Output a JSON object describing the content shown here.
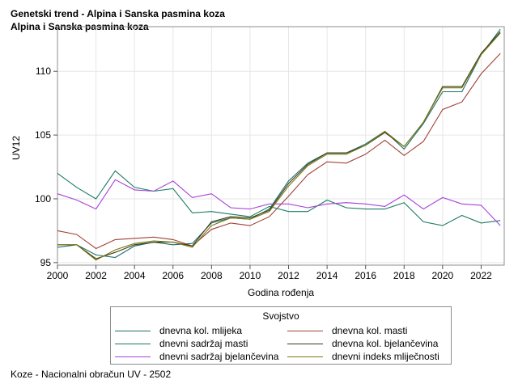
{
  "header": {
    "title": "Genetski trend - Alpina i Sanska pasmina koza",
    "subtitle": "Alpina i Sanska pasmina koza"
  },
  "footnote": "Koze - Nacionalni obračun UV - 2502",
  "chart_data": {
    "type": "line",
    "xlabel": "Godina rođenja",
    "ylabel": "UV12",
    "xlim": [
      2000,
      2023.2
    ],
    "ylim": [
      94.8,
      113.5
    ],
    "xticks": [
      "2000",
      "2002",
      "2004",
      "2006",
      "2008",
      "2010",
      "2012",
      "2014",
      "2016",
      "2018",
      "2020",
      "2022"
    ],
    "yticks": [
      "95",
      "100",
      "105",
      "110"
    ],
    "grid": true,
    "legend_title": "Svojstvo",
    "legend_position": "bottom",
    "x": [
      2000,
      2001,
      2002,
      2003,
      2004,
      2005,
      2006,
      2007,
      2008,
      2009,
      2010,
      2011,
      2012,
      2013,
      2014,
      2015,
      2016,
      2017,
      2018,
      2019,
      2020,
      2021,
      2022,
      2023
    ],
    "series": [
      {
        "name": "dnevna kol. mlijeka",
        "color": "#1f6e6e",
        "values": [
          96.2,
          96.4,
          95.6,
          95.4,
          96.3,
          96.6,
          96.4,
          96.5,
          98.1,
          98.5,
          98.4,
          99.2,
          101.4,
          102.8,
          103.6,
          103.6,
          104.3,
          105.3,
          103.9,
          105.9,
          108.4,
          108.4,
          111.3,
          113.3
        ]
      },
      {
        "name": "dnevna kol. masti",
        "color": "#a0413a",
        "values": [
          97.5,
          97.2,
          96.1,
          96.8,
          96.9,
          97.0,
          96.8,
          96.3,
          97.6,
          98.1,
          97.9,
          98.6,
          100.2,
          101.9,
          102.9,
          102.8,
          103.5,
          104.6,
          103.4,
          104.5,
          107.0,
          107.6,
          109.8,
          111.4
        ]
      },
      {
        "name": "dnevni sadržaj masti",
        "color": "#1a7a64",
        "values": [
          102.0,
          100.9,
          100.0,
          102.2,
          100.9,
          100.6,
          100.8,
          98.9,
          99.0,
          98.8,
          98.6,
          99.4,
          99.0,
          99.0,
          99.9,
          99.3,
          99.2,
          99.2,
          99.7,
          98.2,
          97.9,
          98.7,
          98.1,
          98.3
        ]
      },
      {
        "name": "dnevna kol. bjelančevina",
        "color": "#3a3a18",
        "values": [
          96.4,
          96.4,
          95.3,
          95.8,
          96.4,
          96.6,
          96.6,
          96.3,
          98.2,
          98.6,
          98.5,
          99.1,
          101.2,
          102.7,
          103.6,
          103.6,
          104.2,
          105.2,
          104.1,
          106.0,
          108.8,
          108.8,
          111.4,
          113.1
        ]
      },
      {
        "name": "dnevni sadržaj bjelančevina",
        "color": "#a642d8",
        "values": [
          100.4,
          99.9,
          99.2,
          101.5,
          100.7,
          100.6,
          101.4,
          100.1,
          100.4,
          99.3,
          99.2,
          99.6,
          99.6,
          99.3,
          99.6,
          99.7,
          99.6,
          99.4,
          100.3,
          99.2,
          100.1,
          99.6,
          99.5,
          97.9
        ]
      },
      {
        "name": "dnevni indeks mliječnosti",
        "color": "#7a7a10",
        "values": [
          96.4,
          96.4,
          95.2,
          96.0,
          96.5,
          96.7,
          96.6,
          96.2,
          97.9,
          98.5,
          98.4,
          99.0,
          101.0,
          102.6,
          103.5,
          103.5,
          104.2,
          105.3,
          104.1,
          106.0,
          108.7,
          108.7,
          111.3,
          113.0
        ]
      }
    ]
  }
}
